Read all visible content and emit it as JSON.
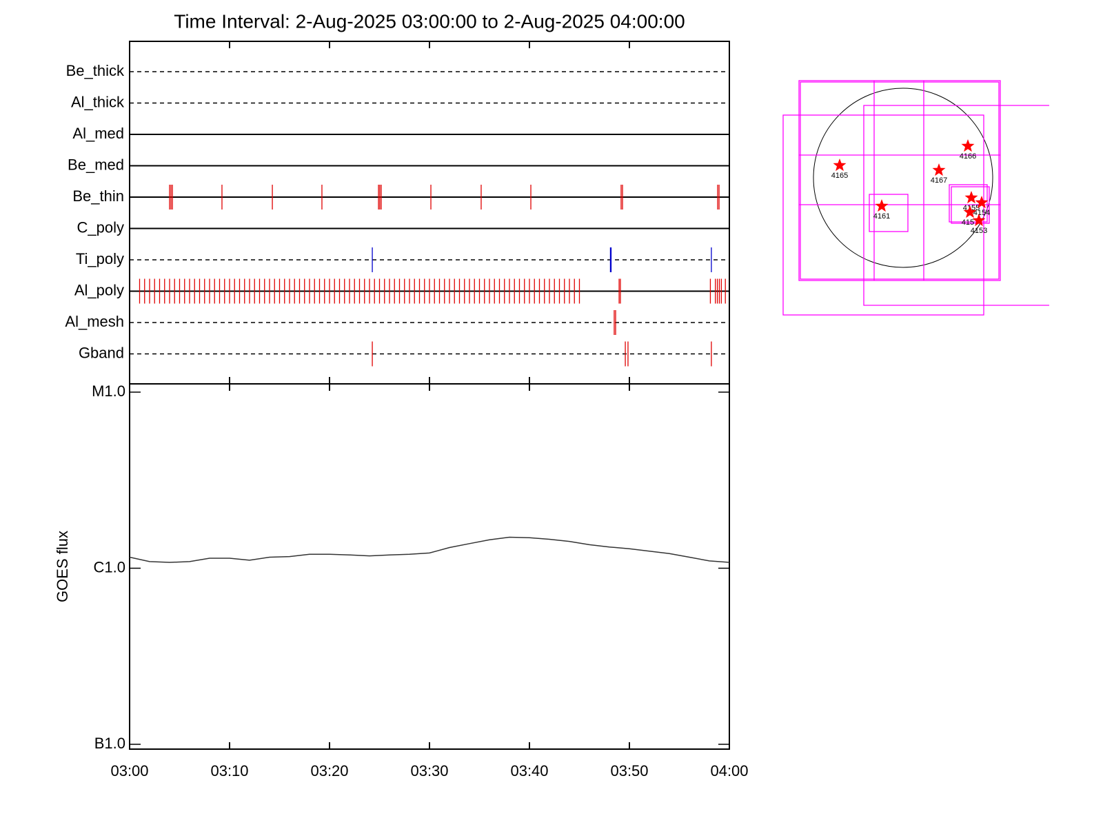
{
  "chart_data": [
    {
      "type": "event",
      "title": "Time Interval:  2-Aug-2025 03:00:00 to  2-Aug-2025 04:00:00",
      "categories": [
        "Be_thick",
        "Al_thick",
        "Al_med",
        "Be_med",
        "Be_thin",
        "C_poly",
        "Ti_poly",
        "Al_poly",
        "Al_mesh",
        "Gband"
      ],
      "line_styles": [
        "dashed",
        "dashed",
        "solid",
        "solid",
        "solid",
        "solid",
        "dashed",
        "solid",
        "dashed",
        "dashed"
      ],
      "xlim": [
        0,
        60
      ],
      "events": [
        {
          "color": "#e00000",
          "x": []
        },
        {
          "color": "#e00000",
          "x": []
        },
        {
          "color": "#e00000",
          "x": []
        },
        {
          "color": "#e00000",
          "x": []
        },
        {
          "color": "#e00000",
          "x": [
            4.0,
            4.14,
            4.28,
            9.24,
            14.28,
            19.24,
            24.9,
            25.03,
            25.17,
            30.14,
            35.17,
            40.14,
            49.17,
            49.31,
            58.83,
            58.97
          ]
        },
        {
          "color": "#e00000",
          "x": []
        },
        {
          "color": "#0000cc",
          "x": [
            24.28,
            48.1,
            48.17,
            58.2
          ]
        },
        {
          "color": "#e00000",
          "x": [
            1.0,
            1.5,
            2.0,
            2.5,
            3.0,
            3.5,
            4.0,
            4.5,
            5.0,
            5.5,
            6.0,
            6.5,
            7.0,
            7.5,
            8.0,
            8.5,
            9.0,
            9.5,
            10.0,
            10.5,
            11.0,
            11.5,
            12.0,
            12.5,
            13.0,
            13.5,
            14.0,
            14.5,
            15.0,
            15.5,
            16.0,
            16.5,
            17.0,
            17.5,
            18.0,
            18.5,
            19.0,
            19.5,
            20.0,
            20.5,
            21.0,
            21.5,
            22.0,
            22.5,
            23.0,
            23.5,
            24.0,
            24.5,
            25.0,
            25.5,
            26.0,
            26.5,
            27.0,
            27.5,
            28.0,
            28.5,
            29.0,
            29.5,
            30.0,
            30.5,
            31.0,
            31.5,
            32.0,
            32.5,
            33.0,
            33.5,
            34.0,
            34.5,
            35.0,
            35.5,
            36.0,
            36.5,
            37.0,
            37.5,
            38.0,
            38.5,
            39.0,
            39.5,
            40.0,
            40.5,
            41.0,
            41.5,
            42.0,
            42.5,
            43.0,
            43.5,
            44.0,
            44.5,
            45.0,
            48.97,
            49.1,
            58.1,
            58.6,
            58.8,
            59.0,
            59.2,
            59.6
          ]
        },
        {
          "color": "#e00000",
          "x": [
            48.48,
            48.62
          ]
        },
        {
          "color": "#e00000",
          "x": [
            24.28,
            49.59,
            49.86,
            58.2
          ]
        }
      ]
    },
    {
      "type": "line",
      "ylabel": "GOES flux",
      "x": [
        0,
        2,
        4,
        6,
        8,
        10,
        12,
        14,
        16,
        18,
        20,
        22,
        24,
        26,
        28,
        30,
        32,
        34,
        36,
        38,
        40,
        42,
        44,
        46,
        48,
        50,
        52,
        54,
        56,
        58,
        60
      ],
      "values": [
        1.155e-06,
        1.09e-06,
        1.08e-06,
        1.09e-06,
        1.14e-06,
        1.14e-06,
        1.11e-06,
        1.155e-06,
        1.165e-06,
        1.2e-06,
        1.2e-06,
        1.19e-06,
        1.175e-06,
        1.19e-06,
        1.2e-06,
        1.22e-06,
        1.31e-06,
        1.38e-06,
        1.45e-06,
        1.5e-06,
        1.49e-06,
        1.46e-06,
        1.42e-06,
        1.36e-06,
        1.32e-06,
        1.29e-06,
        1.25e-06,
        1.21e-06,
        1.155e-06,
        1.1e-06,
        1.08e-06
      ],
      "color": "#333333",
      "xlim": [
        0,
        60
      ],
      "xticks": [
        {
          "value": 0,
          "label": "03:00"
        },
        {
          "value": 10,
          "label": "03:10"
        },
        {
          "value": 20,
          "label": "03:20"
        },
        {
          "value": 30,
          "label": "03:30"
        },
        {
          "value": 40,
          "label": "03:40"
        },
        {
          "value": 50,
          "label": "03:50"
        },
        {
          "value": 60,
          "label": "04:00"
        }
      ],
      "ylim": [
        1e-07,
        1e-05
      ],
      "yticks": [
        {
          "value": 1e-07,
          "label": "B1.0"
        },
        {
          "value": 1e-06,
          "label": "C1.0"
        },
        {
          "value": 1e-05,
          "label": "M1.0"
        }
      ],
      "log_y": true
    }
  ],
  "map": {
    "regions": [
      "4165",
      "4166",
      "4167",
      "4161",
      "4155",
      "4154",
      "4157",
      "4153"
    ]
  }
}
